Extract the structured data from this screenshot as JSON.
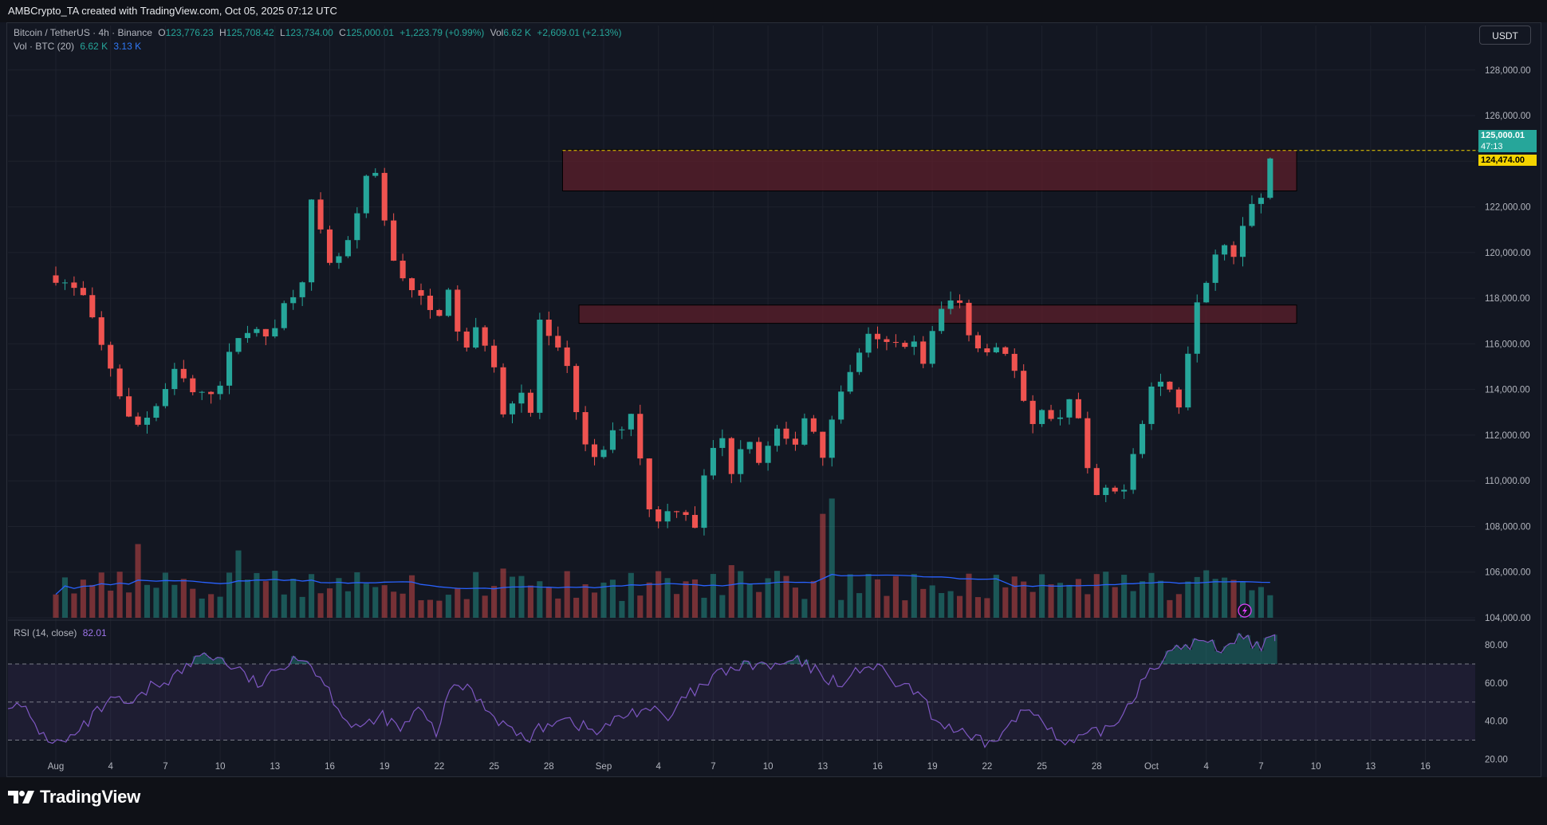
{
  "header": {
    "attribution": "AMBCrypto_TA created with TradingView.com, Oct 05, 2025 07:12 UTC"
  },
  "legend": {
    "symbol": "Bitcoin / TetherUS · 4h · Binance",
    "o_label": "O",
    "o_value": "123,776.23",
    "h_label": "H",
    "h_value": "125,708.42",
    "l_label": "L",
    "l_value": "123,734.00",
    "c_label": "C",
    "c_value": "125,000.01",
    "change": "+1,223.79 (+0.99%)",
    "vol_label": "Vol",
    "vol_value": "6.62 K",
    "vol_change": "+2,609.01 (+2.13%)",
    "vol_indicator": "Vol · BTC (20)",
    "vol_indicator_value": "6.62 K",
    "vol_indicator_ma": "3.13 K"
  },
  "currency_button": "USDT",
  "rsi_legend": {
    "label": "RSI (14, close)",
    "value": "82.01"
  },
  "price_tags": {
    "last_price": "125,000.01",
    "countdown": "47:13",
    "level": "124,474.00"
  },
  "brand": "TradingView",
  "colors": {
    "background": "#131722",
    "up": "#26a69a",
    "down": "#ef5350",
    "zone_fill": "#5c1f2b",
    "zone_border": "#e8a0a8",
    "volume_ma": "#2962ff",
    "rsi_line": "#7e57c2",
    "level_line": "#f5d400"
  },
  "icons": {
    "replay": "lightning-icon",
    "logo": "tradingview-logo-icon"
  },
  "chart_data": [
    {
      "type": "candlestick",
      "title": "Bitcoin / TetherUS · 4h · Binance",
      "y_ticks": [
        "104,000.00",
        "106,000.00",
        "108,000.00",
        "110,000.00",
        "112,000.00",
        "114,000.00",
        "116,000.00",
        "118,000.00",
        "120,000.00",
        "122,000.00",
        "124,000.00",
        "126,000.00",
        "128,000.00"
      ],
      "ylim": [
        104000,
        128900
      ],
      "x_ticks": [
        "Aug",
        "4",
        "7",
        "10",
        "13",
        "16",
        "19",
        "22",
        "25",
        "28",
        "Sep",
        "4",
        "7",
        "10",
        "13",
        "16",
        "19",
        "22",
        "25",
        "28",
        "Oct",
        "4",
        "7",
        "10",
        "13",
        "16"
      ],
      "zones": [
        {
          "name": "resistance",
          "from": 122700,
          "to": 124500,
          "x_start_tick": 9.25,
          "x_end_tick": 22.65
        },
        {
          "name": "support",
          "from": 116900,
          "to": 117700,
          "x_start_tick": 9.55,
          "x_end_tick": 22.65
        }
      ],
      "horizontal_line": 124474.0,
      "price_path": [
        [
          0,
          119000
        ],
        [
          0.5,
          118000
        ],
        [
          0.8,
          116000
        ],
        [
          1.0,
          115000
        ],
        [
          1.4,
          112200
        ],
        [
          1.8,
          113200
        ],
        [
          2.2,
          114800
        ],
        [
          2.6,
          113500
        ],
        [
          3.0,
          114400
        ],
        [
          3.4,
          116800
        ],
        [
          3.8,
          116200
        ],
        [
          4.2,
          117800
        ],
        [
          4.5,
          119000
        ],
        [
          4.65,
          122200
        ],
        [
          4.8,
          121000
        ],
        [
          5.0,
          119300
        ],
        [
          5.3,
          120200
        ],
        [
          5.5,
          121400
        ],
        [
          5.75,
          124200
        ],
        [
          5.95,
          121800
        ],
        [
          6.15,
          119800
        ],
        [
          6.5,
          118400
        ],
        [
          6.8,
          117400
        ],
        [
          7.0,
          117500
        ],
        [
          7.2,
          118200
        ],
        [
          7.45,
          115400
        ],
        [
          7.7,
          116700
        ],
        [
          7.95,
          115700
        ],
        [
          8.2,
          112800
        ],
        [
          8.45,
          114400
        ],
        [
          8.65,
          112400
        ],
        [
          8.8,
          117200
        ],
        [
          9.0,
          116100
        ],
        [
          9.3,
          115100
        ],
        [
          9.5,
          113200
        ],
        [
          9.75,
          110500
        ],
        [
          10.0,
          111400
        ],
        [
          10.3,
          112400
        ],
        [
          10.5,
          113000
        ],
        [
          10.7,
          110800
        ],
        [
          10.85,
          108400
        ],
        [
          11.1,
          108500
        ],
        [
          11.4,
          109000
        ],
        [
          11.7,
          108000
        ],
        [
          11.85,
          110300
        ],
        [
          12.1,
          112200
        ],
        [
          12.35,
          110400
        ],
        [
          12.6,
          112300
        ],
        [
          12.9,
          110500
        ],
        [
          13.1,
          112400
        ],
        [
          13.4,
          111300
        ],
        [
          13.7,
          113000
        ],
        [
          14.0,
          111300
        ],
        [
          14.3,
          114000
        ],
        [
          14.5,
          114600
        ],
        [
          14.75,
          116300
        ],
        [
          15.0,
          116000
        ],
        [
          15.3,
          115900
        ],
        [
          15.6,
          116300
        ],
        [
          15.8,
          115100
        ],
        [
          16.0,
          116400
        ],
        [
          16.2,
          117600
        ],
        [
          16.45,
          118100
        ],
        [
          16.65,
          116700
        ],
        [
          16.85,
          115800
        ],
        [
          17.1,
          116000
        ],
        [
          17.4,
          115600
        ],
        [
          17.6,
          113900
        ],
        [
          17.8,
          112000
        ],
        [
          18.0,
          113400
        ],
        [
          18.2,
          112400
        ],
        [
          18.5,
          113700
        ],
        [
          18.7,
          112400
        ],
        [
          18.9,
          109300
        ],
        [
          19.2,
          109400
        ],
        [
          19.45,
          109500
        ],
        [
          19.6,
          110700
        ],
        [
          19.8,
          112500
        ],
        [
          20.0,
          114100
        ],
        [
          20.25,
          114500
        ],
        [
          20.45,
          113100
        ],
        [
          20.6,
          114200
        ],
        [
          20.75,
          117800
        ],
        [
          20.95,
          118600
        ],
        [
          21.15,
          120000
        ],
        [
          21.35,
          120700
        ],
        [
          21.55,
          119700
        ],
        [
          21.75,
          122600
        ],
        [
          21.95,
          122000
        ],
        [
          22.15,
          123800
        ],
        [
          22.25,
          125100
        ]
      ],
      "volume_ma_scale": "3.13 K"
    },
    {
      "type": "line",
      "title": "RSI (14, close)",
      "y_ticks": [
        "20.00",
        "40.00",
        "60.00",
        "80.00"
      ],
      "ylim": [
        16,
        88
      ],
      "bands": {
        "upper": 70,
        "middle": 50,
        "lower": 30
      },
      "last_value": 82.01,
      "values": [
        50,
        45,
        32,
        28,
        34,
        45,
        51,
        48,
        58,
        62,
        68,
        76,
        72,
        66,
        59,
        65,
        75,
        70,
        56,
        40,
        36,
        43,
        35,
        46,
        34,
        60,
        56,
        45,
        37,
        30,
        37,
        43,
        38,
        34,
        40,
        45,
        47,
        40,
        53,
        58,
        66,
        68,
        70,
        68,
        72,
        68,
        62,
        60,
        70,
        66,
        58,
        55,
        40,
        36,
        30,
        28,
        36,
        46,
        43,
        27,
        30,
        34,
        38,
        52,
        68,
        74,
        80,
        82,
        78,
        85,
        80,
        82
      ]
    }
  ]
}
